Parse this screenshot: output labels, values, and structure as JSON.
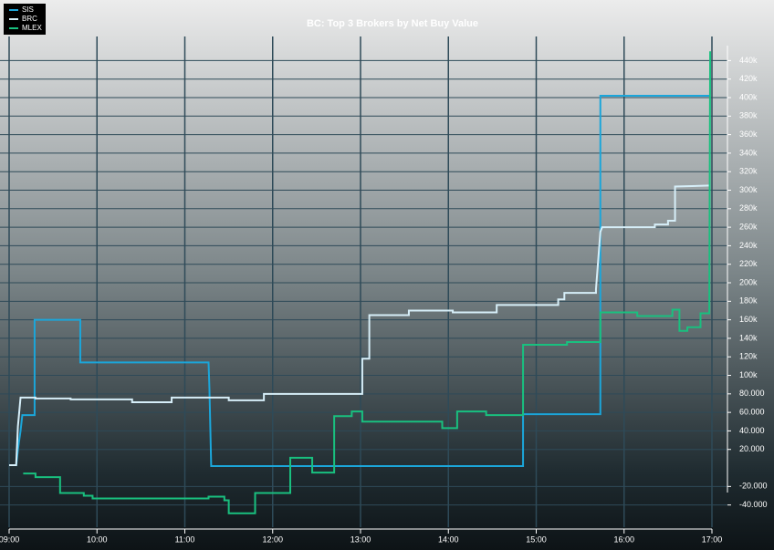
{
  "chart_data": {
    "type": "line",
    "title": "BC: Top 3 Brokers by Net Buy Value",
    "xlim": [
      9,
      17
    ],
    "xticks": [
      {
        "value": 9,
        "label": "09:00"
      },
      {
        "value": 10,
        "label": "10:00"
      },
      {
        "value": 11,
        "label": "11:00"
      },
      {
        "value": 12,
        "label": "12:00"
      },
      {
        "value": 13,
        "label": "13:00"
      },
      {
        "value": 14,
        "label": "14:00"
      },
      {
        "value": 15,
        "label": "15:00"
      },
      {
        "value": 16,
        "label": "16:00"
      },
      {
        "value": 17,
        "label": "17:00"
      }
    ],
    "ylim": [
      -64000,
      466000
    ],
    "yticks": [
      {
        "value": -40000,
        "label": "-40.000"
      },
      {
        "value": -20000,
        "label": "-20.000"
      },
      {
        "value": 20000,
        "label": "20.000"
      },
      {
        "value": 40000,
        "label": "40.000"
      },
      {
        "value": 60000,
        "label": "60.000"
      },
      {
        "value": 80000,
        "label": "80.000"
      },
      {
        "value": 100000,
        "label": "100k"
      },
      {
        "value": 120000,
        "label": "120k"
      },
      {
        "value": 140000,
        "label": "140k"
      },
      {
        "value": 160000,
        "label": "160k"
      },
      {
        "value": 180000,
        "label": "180k"
      },
      {
        "value": 200000,
        "label": "200k"
      },
      {
        "value": 220000,
        "label": "220k"
      },
      {
        "value": 240000,
        "label": "240k"
      },
      {
        "value": 260000,
        "label": "260k"
      },
      {
        "value": 280000,
        "label": "280k"
      },
      {
        "value": 300000,
        "label": "300k"
      },
      {
        "value": 320000,
        "label": "320k"
      },
      {
        "value": 340000,
        "label": "340k"
      },
      {
        "value": 360000,
        "label": "360k"
      },
      {
        "value": 380000,
        "label": "380k"
      },
      {
        "value": 400000,
        "label": "400k"
      },
      {
        "value": 420000,
        "label": "420k"
      },
      {
        "value": 440000,
        "label": "440k"
      }
    ],
    "grid": true,
    "legend": "top-left",
    "series": [
      {
        "name": "SIS",
        "color": "#1ba6da",
        "x": [
          9.08,
          9.1,
          9.13,
          9.15,
          9.29,
          9.29,
          9.81,
          9.81,
          11.27,
          11.28,
          11.3,
          14.85,
          14.85,
          15.73,
          15.73,
          16.98
        ],
        "values": [
          2000,
          20000,
          40000,
          57000,
          57000,
          160000,
          160000,
          114000,
          114000,
          86000,
          2000,
          2000,
          58000,
          58000,
          402000,
          402000
        ]
      },
      {
        "name": "BRC",
        "color": "#d6eef8",
        "x": [
          9.0,
          9.08,
          9.1,
          9.13,
          9.3,
          9.3,
          9.7,
          9.7,
          10.4,
          10.4,
          10.85,
          10.85,
          11.5,
          11.5,
          11.9,
          11.9,
          12.98,
          13.02,
          13.02,
          13.1,
          13.1,
          13.55,
          13.55,
          14.05,
          14.05,
          14.55,
          14.55,
          15.0,
          15.0,
          15.25,
          15.25,
          15.32,
          15.32,
          15.68,
          15.68,
          15.73,
          15.75,
          15.8,
          16.35,
          16.35,
          16.5,
          16.5,
          16.58,
          16.58,
          16.98
        ],
        "values": [
          3000,
          3000,
          45000,
          76000,
          76000,
          75000,
          75000,
          74000,
          74000,
          71000,
          71000,
          76000,
          76000,
          73000,
          73000,
          80000,
          80000,
          80000,
          118000,
          118000,
          165000,
          165000,
          170000,
          170000,
          168000,
          168000,
          176000,
          176000,
          176000,
          176000,
          182000,
          182000,
          189000,
          189000,
          193000,
          255000,
          260000,
          260000,
          260000,
          263000,
          263000,
          267000,
          267000,
          304000,
          305000
        ]
      },
      {
        "name": "MLEX",
        "color": "#19c07f",
        "x": [
          9.16,
          9.3,
          9.3,
          9.58,
          9.58,
          9.85,
          9.85,
          9.95,
          9.95,
          11.27,
          11.27,
          11.45,
          11.45,
          11.5,
          11.5,
          11.8,
          11.8,
          12.2,
          12.2,
          12.45,
          12.45,
          12.7,
          12.7,
          12.9,
          12.9,
          13.02,
          13.02,
          13.93,
          13.93,
          14.1,
          14.1,
          14.43,
          14.43,
          14.85,
          14.85,
          15.35,
          15.35,
          15.73,
          15.73,
          16.15,
          16.15,
          16.55,
          16.55,
          16.63,
          16.63,
          16.72,
          16.72,
          16.87,
          16.87,
          16.97,
          16.98
        ],
        "values": [
          -6000,
          -6000,
          -10000,
          -10000,
          -27000,
          -27000,
          -30000,
          -30000,
          -33000,
          -33000,
          -31000,
          -31000,
          -35000,
          -35000,
          -49000,
          -49000,
          -27000,
          -27000,
          11000,
          11000,
          -5000,
          -5000,
          56000,
          56000,
          61000,
          61000,
          50000,
          50000,
          43000,
          43000,
          61000,
          61000,
          57000,
          57000,
          133000,
          133000,
          136000,
          136000,
          168000,
          168000,
          164000,
          164000,
          171000,
          171000,
          148000,
          148000,
          152000,
          152000,
          167000,
          167000,
          450000
        ]
      }
    ]
  }
}
